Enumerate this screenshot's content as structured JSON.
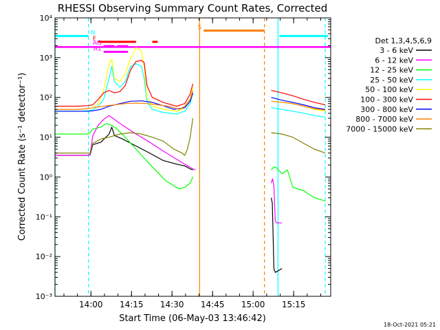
{
  "chart_data": {
    "type": "line",
    "title": "RHESSI Observing Summary Count Rates, Corrected",
    "xlabel": "Start Time (06-May-03 13:46:42)",
    "ylabel": "Corrected Count Rate (s⁻¹ detector⁻¹)",
    "timestamp": "18-Oct-2021 05:21",
    "x_unit": "minutes after 13:46:42",
    "xlim": [
      0,
      102
    ],
    "ylim": [
      0.001,
      10000
    ],
    "yscale": "log",
    "x_ticks": [
      {
        "at": 13.3,
        "label": "14:00"
      },
      {
        "at": 28.3,
        "label": "14:15"
      },
      {
        "at": 43.3,
        "label": "14:30"
      },
      {
        "at": 58.3,
        "label": "14:45"
      },
      {
        "at": 73.3,
        "label": "15:00"
      },
      {
        "at": 88.3,
        "label": "15:15"
      }
    ],
    "y_ticks": [
      {
        "value": 0.001,
        "label": "10⁻³"
      },
      {
        "value": 0.01,
        "label": "10⁻²"
      },
      {
        "value": 0.1,
        "label": "10⁻¹"
      },
      {
        "value": 1,
        "label": "10⁰"
      },
      {
        "value": 10,
        "label": "10¹"
      },
      {
        "value": 100,
        "label": "10²"
      },
      {
        "value": 1000,
        "label": "10³"
      },
      {
        "value": 10000,
        "label": "10⁴"
      }
    ],
    "legend": {
      "placement": "right",
      "header": "Det 1,3,4,5,6,9"
    },
    "series": [
      {
        "name": "3 - 6 keV",
        "color": "#000000",
        "segments": [
          [
            [
              0,
              3.5
            ],
            [
              12,
              3.5
            ],
            [
              13,
              3.6
            ],
            [
              14,
              6.5
            ],
            [
              17,
              7.5
            ],
            [
              20,
              12
            ],
            [
              21,
              18
            ],
            [
              22,
              11
            ],
            [
              25,
              9
            ],
            [
              30,
              6
            ],
            [
              35,
              4
            ],
            [
              40,
              2.6
            ],
            [
              45,
              2.1
            ],
            [
              48,
              1.9
            ],
            [
              50,
              1.6
            ],
            [
              51,
              1.5
            ]
          ],
          [
            [
              80,
              0.3
            ],
            [
              80.4,
              0.22
            ],
            [
              81,
              0.005
            ],
            [
              81.5,
              0.004
            ],
            [
              84,
              0.005
            ]
          ]
        ]
      },
      {
        "name": "6 - 12 keV",
        "color": "#ff00ff",
        "segments": [
          [
            [
              0,
              3.5
            ],
            [
              12,
              3.5
            ],
            [
              13,
              3.7
            ],
            [
              14,
              11
            ],
            [
              16,
              20
            ],
            [
              18,
              28
            ],
            [
              20,
              35
            ],
            [
              22,
              28
            ],
            [
              25,
              20
            ],
            [
              30,
              12
            ],
            [
              35,
              7.5
            ],
            [
              40,
              4.5
            ],
            [
              45,
              2.8
            ],
            [
              48,
              2.1
            ],
            [
              51,
              1.6
            ],
            [
              52,
              1.5
            ]
          ],
          [
            [
              80,
              0.7
            ],
            [
              80.5,
              0.9
            ],
            [
              81,
              0.6
            ],
            [
              81.5,
              0.08
            ],
            [
              82,
              0.07
            ],
            [
              84,
              0.07
            ]
          ]
        ]
      },
      {
        "name": "12 - 25 keV",
        "color": "#00ff00",
        "segments": [
          [
            [
              0,
              12
            ],
            [
              12,
              12
            ],
            [
              13,
              13
            ],
            [
              14,
              16
            ],
            [
              17,
              18
            ],
            [
              19,
              22
            ],
            [
              21,
              20
            ],
            [
              23,
              16
            ],
            [
              26,
              10
            ],
            [
              30,
              5
            ],
            [
              34,
              2.5
            ],
            [
              38,
              1.3
            ],
            [
              41,
              0.8
            ],
            [
              44,
              0.6
            ],
            [
              46,
              0.5
            ],
            [
              48,
              0.55
            ],
            [
              50,
              0.7
            ],
            [
              51,
              1
            ]
          ],
          [
            [
              80,
              1.5
            ],
            [
              81,
              1.8
            ],
            [
              82,
              1.7
            ],
            [
              84,
              1.2
            ],
            [
              86,
              1.5
            ],
            [
              88,
              0.55
            ],
            [
              92,
              0.45
            ],
            [
              96,
              0.3
            ],
            [
              100,
              0.25
            ]
          ]
        ]
      },
      {
        "name": "25 - 50 keV",
        "color": "#00ffff",
        "segments": [
          [
            [
              0,
              45
            ],
            [
              8,
              45
            ],
            [
              12,
              46
            ],
            [
              14,
              48
            ],
            [
              16,
              60
            ],
            [
              18,
              90
            ],
            [
              20,
              300
            ],
            [
              21,
              600
            ],
            [
              22,
              250
            ],
            [
              24,
              180
            ],
            [
              26,
              250
            ],
            [
              27,
              400
            ],
            [
              28,
              600
            ],
            [
              30,
              700
            ],
            [
              32,
              600
            ],
            [
              33,
              300
            ],
            [
              34,
              80
            ],
            [
              36,
              50
            ],
            [
              40,
              42
            ],
            [
              45,
              38
            ],
            [
              48,
              45
            ],
            [
              50,
              70
            ],
            [
              51,
              130
            ]
          ],
          [
            [
              80,
              55
            ],
            [
              84,
              50
            ],
            [
              88,
              45
            ],
            [
              92,
              40
            ],
            [
              96,
              35
            ],
            [
              100,
              32
            ]
          ]
        ]
      },
      {
        "name": "50 - 100 keV",
        "color": "#ffff00",
        "segments": [
          [
            [
              0,
              50
            ],
            [
              8,
              50
            ],
            [
              12,
              52
            ],
            [
              14,
              55
            ],
            [
              16,
              70
            ],
            [
              18,
              150
            ],
            [
              20,
              700
            ],
            [
              21,
              900
            ],
            [
              22,
              300
            ],
            [
              24,
              250
            ],
            [
              26,
              400
            ],
            [
              28,
              1000
            ],
            [
              30,
              1800
            ],
            [
              32,
              1500
            ],
            [
              33,
              600
            ],
            [
              34,
              100
            ],
            [
              36,
              60
            ],
            [
              40,
              50
            ],
            [
              45,
              45
            ],
            [
              48,
              55
            ],
            [
              50,
              90
            ],
            [
              51,
              180
            ]
          ],
          [
            [
              80,
              80
            ],
            [
              84,
              75
            ],
            [
              88,
              70
            ],
            [
              92,
              60
            ],
            [
              96,
              50
            ],
            [
              100,
              45
            ]
          ]
        ]
      },
      {
        "name": "100 - 300 keV",
        "color": "#ff0000",
        "segments": [
          [
            [
              0,
              60
            ],
            [
              8,
              60
            ],
            [
              12,
              62
            ],
            [
              14,
              65
            ],
            [
              16,
              90
            ],
            [
              18,
              130
            ],
            [
              20,
              150
            ],
            [
              22,
              130
            ],
            [
              24,
              140
            ],
            [
              26,
              200
            ],
            [
              28,
              500
            ],
            [
              30,
              800
            ],
            [
              32,
              850
            ],
            [
              33,
              750
            ],
            [
              34,
              200
            ],
            [
              36,
              100
            ],
            [
              40,
              75
            ],
            [
              45,
              60
            ],
            [
              48,
              70
            ],
            [
              50,
              120
            ],
            [
              51,
              220
            ]
          ],
          [
            [
              80,
              150
            ],
            [
              84,
              130
            ],
            [
              88,
              110
            ],
            [
              92,
              90
            ],
            [
              96,
              75
            ],
            [
              100,
              65
            ]
          ]
        ]
      },
      {
        "name": "300 - 800 keV",
        "color": "#0000ff",
        "segments": [
          [
            [
              0,
              45
            ],
            [
              8,
              45
            ],
            [
              12,
              45
            ],
            [
              14,
              46
            ],
            [
              17,
              50
            ],
            [
              20,
              60
            ],
            [
              24,
              70
            ],
            [
              28,
              80
            ],
            [
              32,
              82
            ],
            [
              36,
              75
            ],
            [
              40,
              62
            ],
            [
              44,
              50
            ],
            [
              48,
              55
            ],
            [
              50,
              80
            ],
            [
              51,
              130
            ]
          ],
          [
            [
              80,
              100
            ],
            [
              84,
              85
            ],
            [
              88,
              75
            ],
            [
              92,
              65
            ],
            [
              96,
              55
            ],
            [
              100,
              50
            ]
          ]
        ]
      },
      {
        "name": "800 - 7000 keV",
        "color": "#ff8000",
        "segments": [
          [
            [
              0,
              50
            ],
            [
              8,
              50
            ],
            [
              12,
              52
            ],
            [
              14,
              55
            ],
            [
              18,
              60
            ],
            [
              22,
              65
            ],
            [
              26,
              70
            ],
            [
              30,
              72
            ],
            [
              34,
              70
            ],
            [
              38,
              65
            ],
            [
              42,
              60
            ],
            [
              46,
              50
            ],
            [
              48,
              60
            ],
            [
              50,
              90
            ],
            [
              51,
              150
            ]
          ],
          [
            [
              80,
              80
            ],
            [
              84,
              75
            ],
            [
              88,
              70
            ],
            [
              92,
              60
            ],
            [
              96,
              52
            ],
            [
              100,
              48
            ]
          ]
        ]
      },
      {
        "name": "7000 - 15000 keV",
        "color": "#808000",
        "segments": [
          [
            [
              0,
              4
            ],
            [
              12,
              4
            ],
            [
              13,
              4
            ],
            [
              14,
              7
            ],
            [
              17,
              9
            ],
            [
              20,
              10
            ],
            [
              24,
              12
            ],
            [
              28,
              13
            ],
            [
              32,
              12
            ],
            [
              36,
              10
            ],
            [
              40,
              8
            ],
            [
              44,
              5
            ],
            [
              47,
              4
            ],
            [
              48,
              3.5
            ],
            [
              49,
              5
            ],
            [
              50,
              10
            ],
            [
              51,
              30
            ]
          ],
          [
            [
              80,
              13
            ],
            [
              84,
              12
            ],
            [
              88,
              10
            ],
            [
              92,
              7
            ],
            [
              96,
              5
            ],
            [
              100,
              4
            ]
          ]
        ]
      }
    ],
    "flag_bars": [
      {
        "label": "N",
        "color": "#00ffff",
        "y": 3500,
        "ranges": [
          [
            0,
            12.4
          ],
          [
            83,
            101
          ]
        ]
      },
      {
        "label": "S",
        "color": "#ff8000",
        "y": 4800,
        "ranges": [
          [
            55,
            77.5
          ]
        ]
      },
      {
        "label": "F",
        "color": "#ff0000",
        "y": 2500,
        "ranges": [
          [
            16,
            30
          ],
          [
            36,
            38
          ]
        ]
      },
      {
        "label": "AG",
        "color": "#ff00ff",
        "y": 1950,
        "ranges": [
          [
            18,
            22
          ],
          [
            23,
            27
          ]
        ]
      },
      {
        "label": "A1",
        "color": "#ff00ff",
        "y": 1400,
        "ranges": [
          [
            18,
            27
          ]
        ]
      }
    ],
    "full_span_line": {
      "color": "#ff00ff",
      "y": 1850
    },
    "vertical_lines": [
      {
        "x": 0,
        "color": "#00ffff",
        "style": "solid"
      },
      {
        "x": 12.4,
        "color": "#00ffff",
        "style": "dashed"
      },
      {
        "x": 82.5,
        "color": "#00ffff",
        "style": "solid"
      },
      {
        "x": 100,
        "color": "#00ffff",
        "style": "dashed"
      },
      {
        "x": 53.5,
        "color": "#ff8000",
        "style": "solid"
      },
      {
        "x": 77.5,
        "color": "#ff8000",
        "style": "dashed"
      }
    ]
  }
}
